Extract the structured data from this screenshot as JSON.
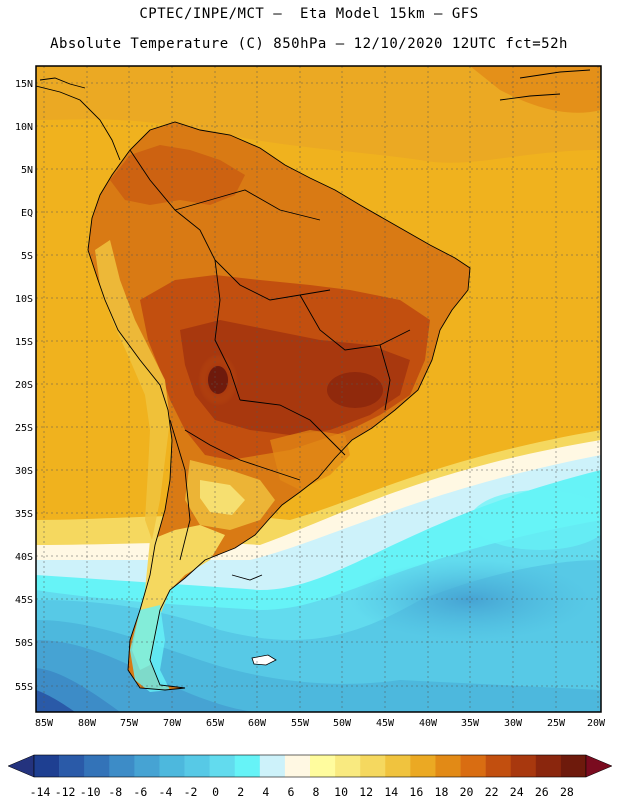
{
  "header": {
    "line1": "CPTEC/INPE/MCT –  Eta Model 15km – GFS",
    "line2": "Absolute Temperature (C) 850hPa – 12/10/2020 12UTC fct=52h"
  },
  "map": {
    "lat_labels": [
      "15N",
      "10N",
      "5N",
      "EQ",
      "5S",
      "10S",
      "15S",
      "20S",
      "25S",
      "30S",
      "35S",
      "40S",
      "45S",
      "50S",
      "55S"
    ],
    "lon_labels": [
      "85W",
      "80W",
      "75W",
      "70W",
      "65W",
      "60W",
      "55W",
      "50W",
      "45W",
      "40W",
      "35W",
      "30W",
      "25W",
      "20W"
    ],
    "land_color": "#d97a14",
    "ocean_warm_color": "#f0b21e"
  },
  "colorbar": {
    "ticks": [
      "-14",
      "-12",
      "-10",
      "-8",
      "-6",
      "-4",
      "-2",
      "0",
      "2",
      "4",
      "6",
      "8",
      "10",
      "12",
      "14",
      "16",
      "18",
      "20",
      "22",
      "24",
      "26",
      "28"
    ],
    "colors": [
      "#1e3f91",
      "#2a5aa8",
      "#3373b8",
      "#3d8cc7",
      "#46a3d3",
      "#4db8dd",
      "#57c9e6",
      "#62dbee",
      "#66f3f7",
      "#cdf2fa",
      "#fff8e3",
      "#fffc9e",
      "#f9ea80",
      "#f5d85f",
      "#f0c33e",
      "#eba923",
      "#e28a16",
      "#d96d12",
      "#c24f0f",
      "#a8380e",
      "#8a260d",
      "#6e1a0c"
    ],
    "under_color": "#24337e",
    "over_color": "#7a0b1f"
  }
}
